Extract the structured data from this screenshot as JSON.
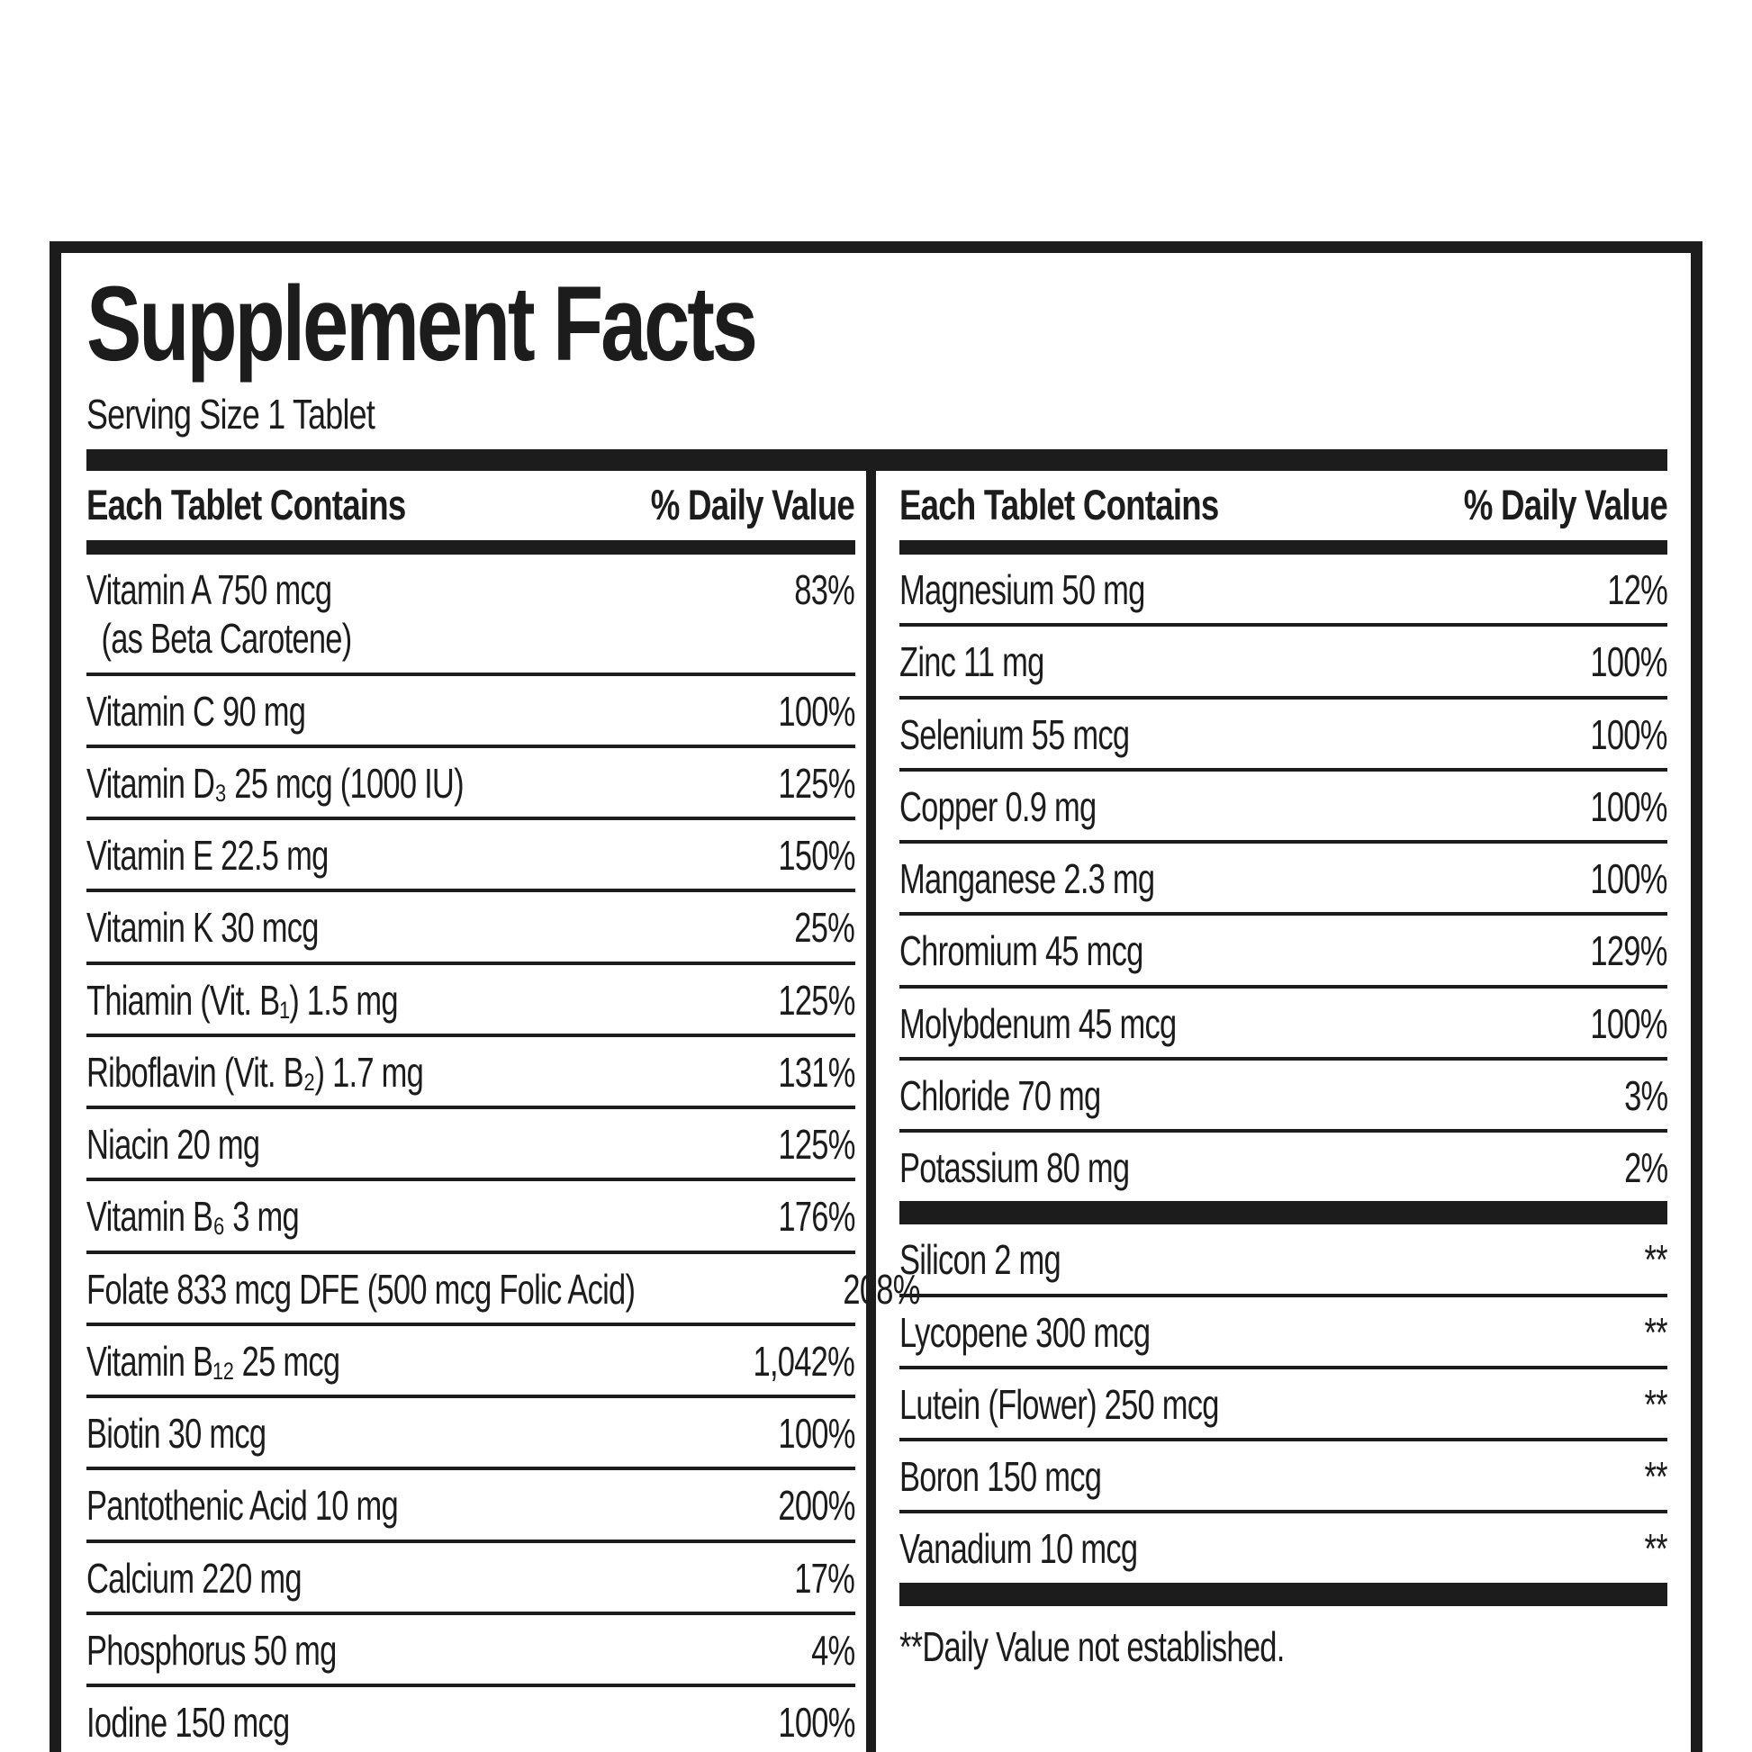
{
  "label": {
    "title": "Supplement Facts",
    "serving_size": "Serving Size 1 Tablet",
    "left": {
      "header_contains": "Each Tablet Contains",
      "header_dv": "% Daily Value",
      "rows": [
        {
          "name": "Vitamin A 750 mcg",
          "name2": "(as Beta Carotene)",
          "dv": "83%"
        },
        {
          "name": "Vitamin C 90 mg",
          "dv": "100%"
        },
        {
          "name": "Vitamin D₃ 25 mcg (1000 IU)",
          "dv": "125%"
        },
        {
          "name": "Vitamin E 22.5 mg",
          "dv": "150%"
        },
        {
          "name": "Vitamin K 30 mcg",
          "dv": "25%"
        },
        {
          "name": "Thiamin (Vit. B₁) 1.5 mg",
          "dv": "125%"
        },
        {
          "name": "Riboflavin (Vit. B₂) 1.7 mg",
          "dv": "131%"
        },
        {
          "name": "Niacin 20 mg",
          "dv": "125%"
        },
        {
          "name": "Vitamin B₆ 3 mg",
          "dv": "176%"
        },
        {
          "name": "Folate 833 mcg DFE (500 mcg Folic Acid)",
          "dv": "208%"
        },
        {
          "name": "Vitamin B₁₂ 25 mcg",
          "dv": "1,042%"
        },
        {
          "name": "Biotin 30 mcg",
          "dv": "100%"
        },
        {
          "name": "Pantothenic Acid 10 mg",
          "dv": "200%"
        },
        {
          "name": "Calcium 220 mg",
          "dv": "17%"
        },
        {
          "name": "Phosphorus 50 mg",
          "dv": "4%"
        },
        {
          "name": "Iodine 150 mcg",
          "dv": "100%"
        }
      ]
    },
    "right": {
      "header_contains": "Each Tablet Contains",
      "header_dv": "% Daily Value",
      "rows": [
        {
          "name": "Magnesium 50 mg",
          "dv": "12%"
        },
        {
          "name": "Zinc 11 mg",
          "dv": "100%"
        },
        {
          "name": "Selenium 55 mcg",
          "dv": "100%"
        },
        {
          "name": "Copper 0.9 mg",
          "dv": "100%"
        },
        {
          "name": "Manganese 2.3 mg",
          "dv": "100%"
        },
        {
          "name": "Chromium 45 mcg",
          "dv": "129%"
        },
        {
          "name": "Molybdenum 45 mcg",
          "dv": "100%"
        },
        {
          "name": "Chloride 70 mg",
          "dv": "3%"
        },
        {
          "name": "Potassium 80 mg",
          "dv": "2%"
        }
      ],
      "rows_no_dv": [
        {
          "name": "Silicon 2 mg",
          "dv": "**"
        },
        {
          "name": "Lycopene 300 mcg",
          "dv": "**"
        },
        {
          "name": "Lutein (Flower) 250 mcg",
          "dv": "**"
        },
        {
          "name": "Boron 150 mcg",
          "dv": "**"
        },
        {
          "name": "Vanadium 10 mcg",
          "dv": "**"
        }
      ],
      "footnote": "**Daily Value not established."
    }
  }
}
